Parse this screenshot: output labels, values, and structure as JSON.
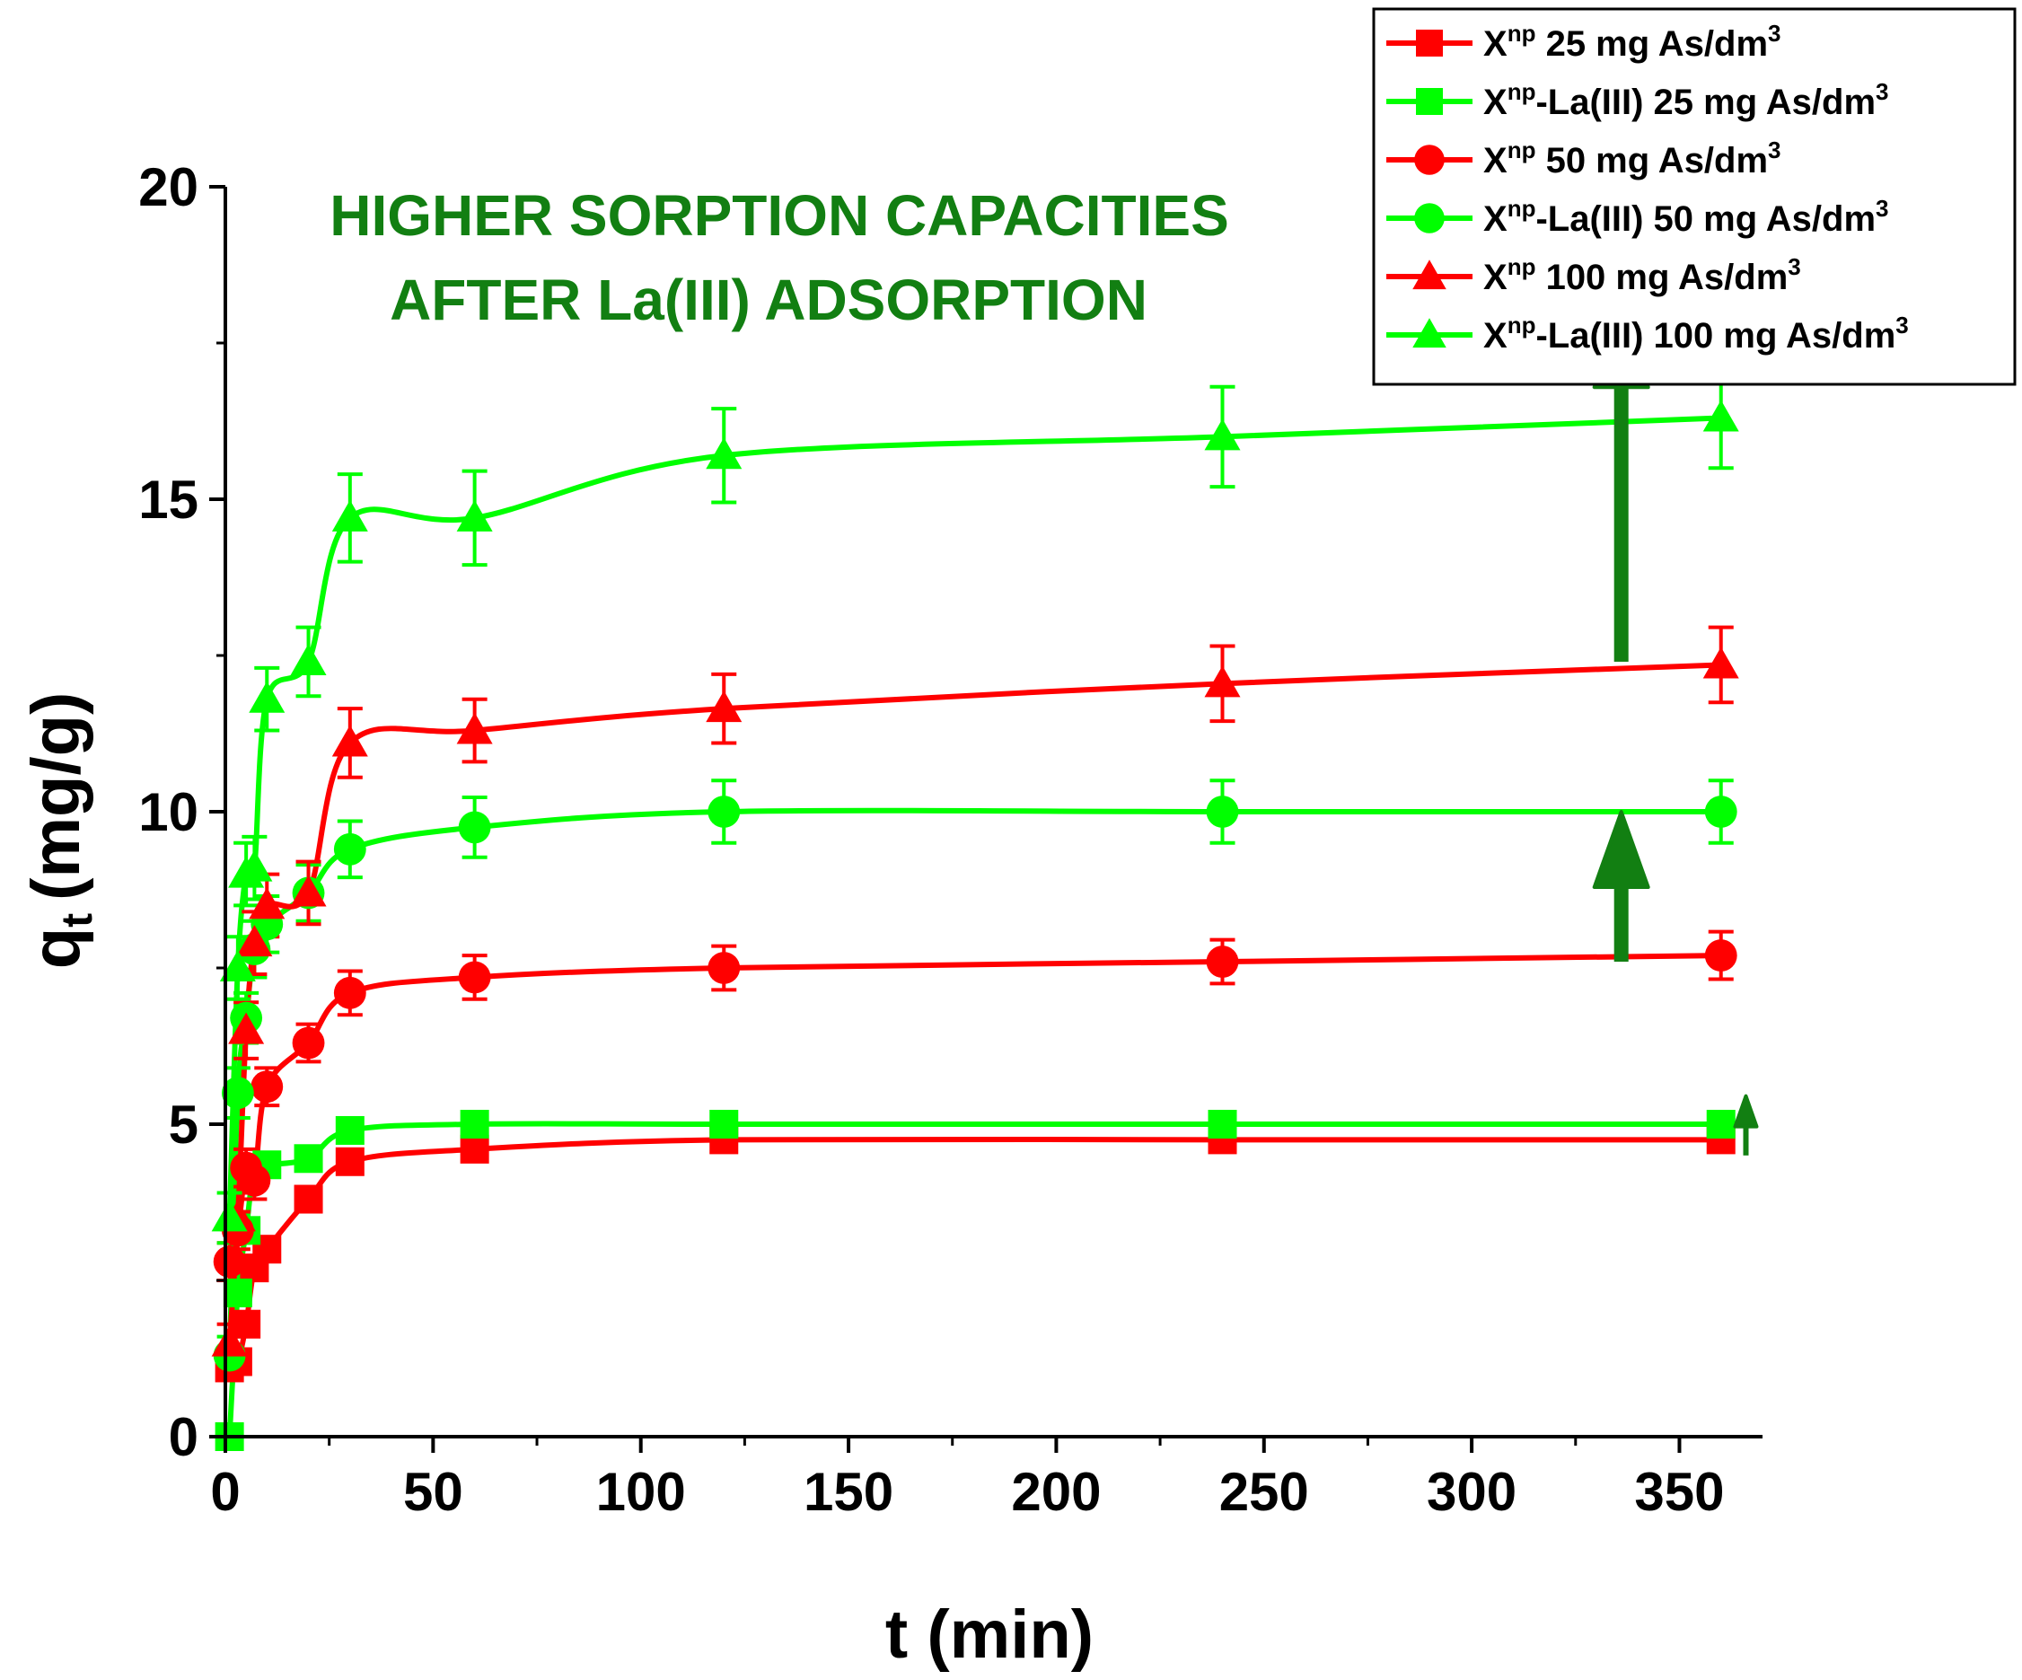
{
  "chart_data": {
    "type": "line",
    "title": "",
    "xlabel": "t (min)",
    "ylabel_main": "q",
    "ylabel_sub": "t",
    "ylabel_unit": "(mg/g)",
    "xlim": [
      0,
      370
    ],
    "ylim": [
      0,
      20
    ],
    "xticks": [
      0,
      50,
      100,
      150,
      200,
      250,
      300,
      350
    ],
    "yticks": [
      0,
      5,
      10,
      15,
      20
    ],
    "grid": false,
    "legend_position": "top-right",
    "annotation": [
      "HIGHER SORPTION CAPACITIES",
      "AFTER La(III) ADSORPTION"
    ],
    "x": [
      1,
      3,
      5,
      7,
      10,
      20,
      30,
      60,
      120,
      240,
      360
    ],
    "series": [
      {
        "name": "X<np> 25 mg As/dm<3>",
        "legend_parts": [
          "X",
          "np",
          " 25 mg As/dm",
          "3"
        ],
        "color": "#ff0000",
        "marker": "square",
        "values": [
          1.1,
          1.2,
          1.8,
          2.7,
          3.0,
          3.8,
          4.4,
          4.6,
          4.75,
          4.75,
          4.75
        ],
        "errors": [
          0.15,
          0.15,
          0.15,
          0.15,
          0.15,
          0.15,
          0.15,
          0.15,
          0.15,
          0.15,
          0.15
        ]
      },
      {
        "name": "X<np>-La(III) 25 mg As/dm<3>",
        "legend_parts": [
          "X",
          "np",
          "-La(III) 25 mg As/dm",
          "3"
        ],
        "color": "#00ff00",
        "marker": "square",
        "values": [
          0.0,
          2.3,
          3.3,
          4.3,
          4.35,
          4.45,
          4.9,
          5.0,
          5.0,
          5.0,
          5.0
        ],
        "errors": [
          0.1,
          0.1,
          0.1,
          0.1,
          0.1,
          0.1,
          0.1,
          0.1,
          0.1,
          0.1,
          0.1
        ]
      },
      {
        "name": "X<np> 50 mg As/dm<3>",
        "legend_parts": [
          "X",
          "np",
          " 50 mg As/dm",
          "3"
        ],
        "color": "#ff0000",
        "marker": "circle",
        "values": [
          2.8,
          3.3,
          4.3,
          4.1,
          5.6,
          6.3,
          7.1,
          7.35,
          7.5,
          7.6,
          7.7
        ],
        "errors": [
          0.3,
          0.3,
          0.3,
          0.3,
          0.3,
          0.3,
          0.35,
          0.35,
          0.35,
          0.35,
          0.38
        ]
      },
      {
        "name": "X<np>-La(III) 50 mg As/dm<3>",
        "legend_parts": [
          "X",
          "np",
          "-La(III) 50 mg As/dm",
          "3"
        ],
        "color": "#00ff00",
        "marker": "circle",
        "values": [
          1.3,
          5.5,
          6.7,
          7.8,
          8.2,
          8.7,
          9.4,
          9.75,
          10.0,
          10.0,
          10.0
        ],
        "errors": [
          0.3,
          0.4,
          0.4,
          0.45,
          0.45,
          0.45,
          0.45,
          0.48,
          0.5,
          0.5,
          0.5
        ]
      },
      {
        "name": "X<np> 100 mg As/dm<3>",
        "legend_parts": [
          "X",
          "np",
          " 100 mg As/dm",
          "3"
        ],
        "color": "#ff0000",
        "marker": "triangle",
        "values": [
          1.5,
          3.5,
          6.5,
          7.9,
          8.5,
          8.7,
          11.1,
          11.3,
          11.65,
          12.05,
          12.35
        ],
        "errors": [
          0.3,
          0.4,
          0.45,
          0.5,
          0.5,
          0.5,
          0.55,
          0.5,
          0.55,
          0.6,
          0.6
        ]
      },
      {
        "name": "X<np>-La(III) 100 mg As/dm<3>",
        "legend_parts": [
          "X",
          "np",
          "-La(III) 100 mg As/dm",
          "3"
        ],
        "color": "#00ff00",
        "marker": "triangle",
        "values": [
          3.5,
          7.5,
          9.0,
          9.1,
          11.8,
          12.4,
          14.7,
          14.7,
          15.7,
          16.0,
          16.3
        ],
        "errors": [
          0.4,
          0.5,
          0.5,
          0.5,
          0.5,
          0.55,
          0.7,
          0.75,
          0.75,
          0.8,
          0.8
        ]
      }
    ],
    "arrows": [
      {
        "x": 336,
        "from": 12.4,
        "to": 18.0,
        "color": "#127f12"
      },
      {
        "x": 336,
        "from": 7.6,
        "to": 10.0,
        "color": "#127f12"
      },
      {
        "x": 366,
        "from": 4.5,
        "to": 5.45,
        "color": "#127f12"
      }
    ]
  }
}
